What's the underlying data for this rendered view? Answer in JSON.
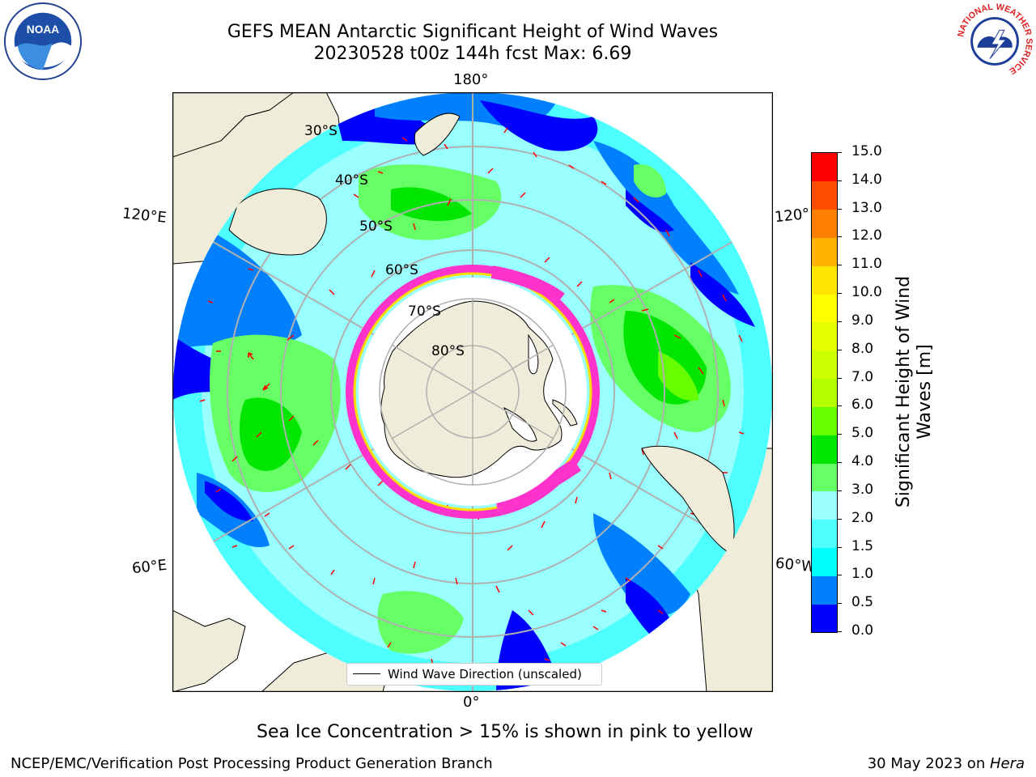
{
  "header": {
    "title_line1": "GEFS MEAN Antarctic Significant Height of Wind Waves",
    "title_line2": "20230528 t00z 144h fcst   Max: 6.69"
  },
  "logos": {
    "left_name": "NOAA",
    "right_name": "NATIONAL WEATHER SERVICE"
  },
  "map": {
    "longitude_labels": {
      "top": "180°",
      "upper_left": "120°E",
      "upper_right": "120°",
      "lower_left": "60°E",
      "lower_right": "60°W",
      "bottom": "0°"
    },
    "latitude_labels": [
      "30°S",
      "40°S",
      "50°S",
      "60°S",
      "70°S",
      "80°S"
    ],
    "legend_label": "Wind Wave Direction (unscaled)",
    "colors": {
      "land": "#efedd9",
      "coast": "#000000",
      "grid": "#b0b0b0",
      "arrow": "#ff0000",
      "sea_ice_pink": "#ff33cc",
      "sea_ice_yellow": "#ffdd00"
    }
  },
  "colorbar": {
    "label_line1": "Significant Height of Wind",
    "label_line2": "Waves [m]",
    "ticks": [
      "0.0",
      "0.5",
      "1.0",
      "1.5",
      "2.0",
      "3.0",
      "4.0",
      "5.0",
      "6.0",
      "7.0",
      "8.0",
      "9.0",
      "10.0",
      "11.0",
      "12.0",
      "13.0",
      "14.0",
      "15.0"
    ],
    "colors": [
      "#0000ff",
      "#0080ff",
      "#00ffff",
      "#4dffff",
      "#99ffff",
      "#66ff66",
      "#00e600",
      "#66ff00",
      "#b3ff00",
      "#ccff00",
      "#e6ff00",
      "#ffff00",
      "#ffe600",
      "#ffb300",
      "#ff8000",
      "#ff4d00",
      "#ff0000"
    ]
  },
  "footer": {
    "sea_ice_note": "Sea Ice Concentration > 15% is shown in pink to yellow",
    "credit": "NCEP/EMC/Verification Post Processing Product Generation Branch",
    "date_prefix": "30 May 2023 on ",
    "machine": "Hera"
  }
}
